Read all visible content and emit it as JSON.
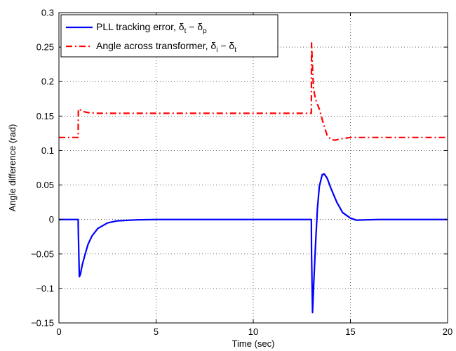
{
  "chart_data": {
    "type": "line",
    "xlabel": "Time (sec)",
    "ylabel": "Angle difference (rad)",
    "xlim": [
      0,
      20
    ],
    "ylim": [
      -0.15,
      0.3
    ],
    "grid": true,
    "legend_position": "top-left",
    "x_ticks": [
      "0",
      "5",
      "10",
      "15",
      "20"
    ],
    "y_ticks": [
      "−0.15",
      "−0.1",
      "−0.05",
      "0",
      "0.05",
      "0.1",
      "0.15",
      "0.2",
      "0.25",
      "0.3"
    ],
    "series": [
      {
        "name": "PLL tracking error, δt − δp",
        "legend": {
          "main": "PLL tracking error, δ",
          "sub1": "t",
          "mid": " − δ",
          "sub2": "p"
        },
        "color": "#0000ff",
        "style": "solid",
        "points": [
          [
            0,
            0
          ],
          [
            0.99,
            0
          ],
          [
            1.0,
            -0.02
          ],
          [
            1.05,
            -0.083
          ],
          [
            1.1,
            -0.08
          ],
          [
            1.2,
            -0.066
          ],
          [
            1.35,
            -0.05
          ],
          [
            1.5,
            -0.036
          ],
          [
            1.7,
            -0.024
          ],
          [
            2.0,
            -0.013
          ],
          [
            2.5,
            -0.005
          ],
          [
            3.0,
            -0.002
          ],
          [
            4.0,
            -0.0005
          ],
          [
            5.0,
            0
          ],
          [
            12.99,
            0
          ],
          [
            13.0,
            -0.05
          ],
          [
            13.05,
            -0.135
          ],
          [
            13.1,
            -0.1
          ],
          [
            13.2,
            -0.04
          ],
          [
            13.3,
            0.015
          ],
          [
            13.4,
            0.048
          ],
          [
            13.55,
            0.065
          ],
          [
            13.65,
            0.066
          ],
          [
            13.8,
            0.06
          ],
          [
            14.0,
            0.045
          ],
          [
            14.3,
            0.025
          ],
          [
            14.6,
            0.01
          ],
          [
            15.0,
            0.002
          ],
          [
            15.3,
            -0.001
          ],
          [
            15.8,
            -0.0005
          ],
          [
            16.5,
            0
          ],
          [
            20,
            0
          ]
        ]
      },
      {
        "name": "Angle across transformer, δi − δt",
        "legend": {
          "main": "Angle across transformer, δ",
          "sub1": "i",
          "mid": " − δ",
          "sub2": "t"
        },
        "color": "#ff0000",
        "style": "dashdot",
        "points": [
          [
            0,
            0.119
          ],
          [
            0.99,
            0.119
          ],
          [
            1.0,
            0.16
          ],
          [
            1.05,
            0.16
          ],
          [
            1.2,
            0.157
          ],
          [
            1.5,
            0.155
          ],
          [
            2.0,
            0.154
          ],
          [
            5.0,
            0.154
          ],
          [
            12.99,
            0.154
          ],
          [
            13.0,
            0.256
          ],
          [
            13.05,
            0.22
          ],
          [
            13.1,
            0.19
          ],
          [
            13.2,
            0.175
          ],
          [
            13.4,
            0.16
          ],
          [
            13.6,
            0.14
          ],
          [
            13.8,
            0.122
          ],
          [
            14.0,
            0.116
          ],
          [
            14.2,
            0.115
          ],
          [
            14.5,
            0.117
          ],
          [
            15.0,
            0.119
          ],
          [
            16.0,
            0.119
          ],
          [
            20,
            0.119
          ]
        ]
      }
    ]
  }
}
